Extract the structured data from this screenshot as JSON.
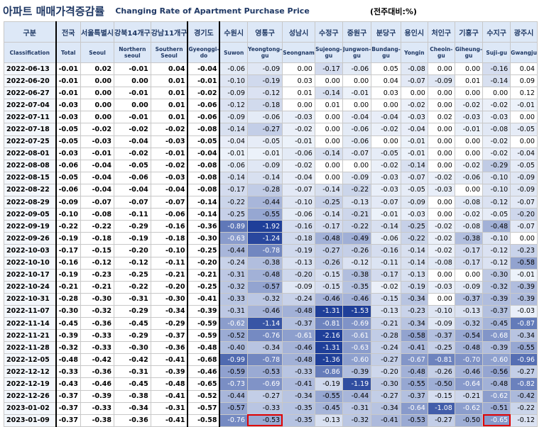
{
  "title": {
    "korean": "아파트 매매가격증감률",
    "english": "Changing Rate of Apartment Purchase Price",
    "unit": "(전주대비:%)"
  },
  "columns": [
    {
      "ko": "구분",
      "en": "Classification"
    },
    {
      "ko": "전국",
      "en": "Total"
    },
    {
      "ko": "서울특별시",
      "en": "Seoul"
    },
    {
      "ko": "강북14개구",
      "en": "Northern seoul"
    },
    {
      "ko": "강남11개구",
      "en": "Southern Seoul"
    },
    {
      "ko": "경기도",
      "en": "Gyeonggi-do"
    },
    {
      "ko": "수원시",
      "en": "Suwon"
    },
    {
      "ko": "영통구",
      "en": "Yeongtong-gu"
    },
    {
      "ko": "성남시",
      "en": "Seongnam"
    },
    {
      "ko": "수정구",
      "en": "Sujeong-gu"
    },
    {
      "ko": "중원구",
      "en": "Jungwon-gu"
    },
    {
      "ko": "분당구",
      "en": "Bundang-gu"
    },
    {
      "ko": "용인시",
      "en": "Yongin"
    },
    {
      "ko": "처인구",
      "en": "Cheoin-gu"
    },
    {
      "ko": "기흥구",
      "en": "Giheung-gu"
    },
    {
      "ko": "수지구",
      "en": "Suji-gu"
    },
    {
      "ko": "광주시",
      "en": "Gwangju"
    }
  ],
  "rows": [
    {
      "date": "2022-06-13",
      "values": [
        "-0.01",
        "0.02",
        "-0.01",
        "0.04",
        "-0.04",
        "-0.06",
        "-0.09",
        "0.00",
        "-0.17",
        "-0.06",
        "0.05",
        "-0.08",
        "0.00",
        "0.00",
        "-0.16",
        "0.04"
      ]
    },
    {
      "date": "2022-06-20",
      "values": [
        "-0.01",
        "0.00",
        "0.00",
        "0.01",
        "-0.01",
        "-0.10",
        "-0.19",
        "0.03",
        "0.00",
        "0.00",
        "0.04",
        "-0.07",
        "-0.09",
        "0.01",
        "-0.14",
        "0.09"
      ]
    },
    {
      "date": "2022-06-27",
      "values": [
        "-0.01",
        "0.00",
        "-0.01",
        "0.01",
        "-0.02",
        "-0.09",
        "-0.12",
        "0.01",
        "-0.14",
        "-0.01",
        "0.03",
        "0.00",
        "0.00",
        "0.00",
        "0.00",
        "0.12"
      ]
    },
    {
      "date": "2022-07-04",
      "values": [
        "-0.03",
        "0.00",
        "0.00",
        "0.01",
        "-0.06",
        "-0.12",
        "-0.18",
        "0.00",
        "0.01",
        "0.00",
        "0.00",
        "-0.02",
        "0.00",
        "-0.02",
        "-0.02",
        "-0.01"
      ]
    },
    {
      "date": "2022-07-11",
      "values": [
        "-0.03",
        "0.00",
        "-0.01",
        "0.01",
        "-0.06",
        "-0.09",
        "-0.06",
        "-0.03",
        "0.00",
        "-0.04",
        "-0.04",
        "-0.03",
        "0.02",
        "-0.03",
        "-0.03",
        "0.00"
      ]
    },
    {
      "date": "2022-07-18",
      "values": [
        "-0.05",
        "-0.02",
        "-0.02",
        "-0.02",
        "-0.08",
        "-0.14",
        "-0.27",
        "-0.02",
        "0.00",
        "-0.06",
        "-0.02",
        "-0.04",
        "0.00",
        "-0.01",
        "-0.08",
        "-0.05"
      ]
    },
    {
      "date": "2022-07-25",
      "values": [
        "-0.05",
        "-0.03",
        "-0.04",
        "-0.03",
        "-0.05",
        "-0.04",
        "-0.05",
        "-0.01",
        "0.00",
        "-0.06",
        "0.00",
        "-0.01",
        "0.00",
        "0.00",
        "-0.02",
        "0.00"
      ]
    },
    {
      "date": "2022-08-01",
      "values": [
        "-0.03",
        "-0.01",
        "-0.02",
        "-0.01",
        "-0.04",
        "-0.01",
        "-0.01",
        "-0.06",
        "-0.14",
        "-0.07",
        "-0.05",
        "-0.01",
        "0.00",
        "0.00",
        "-0.02",
        "-0.04"
      ]
    },
    {
      "date": "2022-08-08",
      "values": [
        "-0.06",
        "-0.04",
        "-0.05",
        "-0.02",
        "-0.08",
        "-0.06",
        "-0.09",
        "-0.02",
        "0.00",
        "0.00",
        "-0.02",
        "-0.14",
        "0.00",
        "-0.02",
        "-0.29",
        "-0.05"
      ]
    },
    {
      "date": "2022-08-15",
      "values": [
        "-0.05",
        "-0.04",
        "-0.06",
        "-0.03",
        "-0.08",
        "-0.14",
        "-0.14",
        "-0.04",
        "0.00",
        "-0.09",
        "-0.03",
        "-0.07",
        "-0.02",
        "-0.06",
        "-0.10",
        "-0.09"
      ]
    },
    {
      "date": "2022-08-22",
      "values": [
        "-0.06",
        "-0.04",
        "-0.04",
        "-0.04",
        "-0.08",
        "-0.17",
        "-0.28",
        "-0.07",
        "-0.14",
        "-0.22",
        "-0.03",
        "-0.05",
        "-0.03",
        "0.00",
        "-0.10",
        "-0.09"
      ]
    },
    {
      "date": "2022-08-29",
      "values": [
        "-0.09",
        "-0.07",
        "-0.07",
        "-0.07",
        "-0.14",
        "-0.22",
        "-0.44",
        "-0.10",
        "-0.25",
        "-0.13",
        "-0.07",
        "-0.09",
        "0.00",
        "-0.08",
        "-0.12",
        "-0.07"
      ]
    },
    {
      "date": "2022-09-05",
      "values": [
        "-0.10",
        "-0.08",
        "-0.11",
        "-0.06",
        "-0.14",
        "-0.25",
        "-0.55",
        "-0.06",
        "-0.14",
        "-0.21",
        "-0.01",
        "-0.03",
        "0.00",
        "-0.02",
        "-0.05",
        "-0.20"
      ]
    },
    {
      "date": "2022-09-19",
      "values": [
        "-0.22",
        "-0.22",
        "-0.29",
        "-0.16",
        "-0.36",
        "-0.89",
        "-1.92",
        "-0.16",
        "-0.17",
        "-0.22",
        "-0.14",
        "-0.25",
        "-0.02",
        "-0.08",
        "-0.48",
        "-0.07"
      ]
    },
    {
      "date": "2022-09-26",
      "values": [
        "-0.19",
        "-0.18",
        "-0.19",
        "-0.18",
        "-0.30",
        "-0.63",
        "-1.24",
        "-0.18",
        "-0.48",
        "-0.49",
        "-0.06",
        "-0.22",
        "-0.02",
        "-0.38",
        "-0.10",
        "0.00"
      ]
    },
    {
      "date": "2022-10-03",
      "values": [
        "-0.17",
        "-0.15",
        "-0.20",
        "-0.10",
        "-0.25",
        "-0.44",
        "-0.78",
        "-0.19",
        "-0.27",
        "-0.26",
        "-0.16",
        "-0.14",
        "-0.02",
        "-0.17",
        "-0.12",
        "-0.23"
      ]
    },
    {
      "date": "2022-10-10",
      "values": [
        "-0.16",
        "-0.12",
        "-0.12",
        "-0.11",
        "-0.20",
        "-0.24",
        "-0.38",
        "-0.13",
        "-0.26",
        "-0.12",
        "-0.11",
        "-0.14",
        "-0.08",
        "-0.17",
        "-0.12",
        "-0.58"
      ]
    },
    {
      "date": "2022-10-17",
      "values": [
        "-0.19",
        "-0.23",
        "-0.25",
        "-0.21",
        "-0.21",
        "-0.31",
        "-0.48",
        "-0.20",
        "-0.15",
        "-0.38",
        "-0.17",
        "-0.13",
        "0.00",
        "0.00",
        "-0.30",
        "-0.01"
      ]
    },
    {
      "date": "2022-10-24",
      "values": [
        "-0.21",
        "-0.21",
        "-0.22",
        "-0.20",
        "-0.25",
        "-0.32",
        "-0.57",
        "-0.09",
        "-0.15",
        "-0.35",
        "-0.02",
        "-0.19",
        "-0.03",
        "-0.09",
        "-0.32",
        "-0.39"
      ]
    },
    {
      "date": "2022-10-31",
      "values": [
        "-0.28",
        "-0.30",
        "-0.31",
        "-0.30",
        "-0.41",
        "-0.33",
        "-0.32",
        "-0.24",
        "-0.46",
        "-0.46",
        "-0.15",
        "-0.34",
        "0.00",
        "-0.37",
        "-0.39",
        "-0.39"
      ]
    },
    {
      "date": "2022-11-07",
      "values": [
        "-0.30",
        "-0.32",
        "-0.29",
        "-0.34",
        "-0.39",
        "-0.31",
        "-0.46",
        "-0.48",
        "-1.31",
        "-1.53",
        "-0.13",
        "-0.23",
        "-0.10",
        "-0.13",
        "-0.37",
        "-0.03"
      ]
    },
    {
      "date": "2022-11-14",
      "values": [
        "-0.45",
        "-0.36",
        "-0.45",
        "-0.29",
        "-0.59",
        "-0.62",
        "-1.14",
        "-0.37",
        "-0.81",
        "-0.69",
        "-0.21",
        "-0.34",
        "-0.09",
        "-0.32",
        "-0.45",
        "-0.87"
      ]
    },
    {
      "date": "2022-11-21",
      "values": [
        "-0.39",
        "-0.33",
        "-0.29",
        "-0.37",
        "-0.59",
        "-0.52",
        "-0.76",
        "-0.61",
        "-2.16",
        "-0.61",
        "-0.28",
        "-0.58",
        "-0.37",
        "-0.54",
        "-0.68",
        "-0.34"
      ]
    },
    {
      "date": "2022-11-28",
      "values": [
        "-0.32",
        "-0.33",
        "-0.30",
        "-0.36",
        "-0.48",
        "-0.40",
        "-0.34",
        "-0.46",
        "-1.31",
        "-0.63",
        "-0.24",
        "-0.41",
        "-0.25",
        "-0.48",
        "-0.39",
        "-0.55"
      ]
    },
    {
      "date": "2022-12-05",
      "values": [
        "-0.48",
        "-0.42",
        "-0.42",
        "-0.41",
        "-0.68",
        "-0.99",
        "-0.78",
        "-0.48",
        "-1.36",
        "-0.60",
        "-0.27",
        "-0.67",
        "-0.81",
        "-0.70",
        "-0.60",
        "-0.96"
      ]
    },
    {
      "date": "2022-12-12",
      "values": [
        "-0.33",
        "-0.36",
        "-0.31",
        "-0.39",
        "-0.46",
        "-0.59",
        "-0.53",
        "-0.33",
        "-0.86",
        "-0.39",
        "-0.20",
        "-0.48",
        "-0.26",
        "-0.46",
        "-0.56",
        "-0.27"
      ]
    },
    {
      "date": "2022-12-19",
      "values": [
        "-0.43",
        "-0.46",
        "-0.45",
        "-0.48",
        "-0.65",
        "-0.73",
        "-0.69",
        "-0.41",
        "-0.19",
        "-1.19",
        "-0.30",
        "-0.55",
        "-0.50",
        "-0.64",
        "-0.48",
        "-0.82"
      ]
    },
    {
      "date": "2022-12-26",
      "values": [
        "-0.37",
        "-0.39",
        "-0.38",
        "-0.41",
        "-0.52",
        "-0.44",
        "-0.27",
        "-0.34",
        "-0.55",
        "-0.44",
        "-0.27",
        "-0.37",
        "-0.15",
        "-0.21",
        "-0.62",
        "-0.42"
      ]
    },
    {
      "date": "2023-01-02",
      "values": [
        "-0.37",
        "-0.33",
        "-0.34",
        "-0.31",
        "-0.57",
        "-0.57",
        "-0.33",
        "-0.35",
        "-0.45",
        "-0.31",
        "-0.34",
        "-0.64",
        "-1.08",
        "-0.62",
        "-0.51",
        "-0.22"
      ]
    },
    {
      "date": "2023-01-09",
      "values": [
        "-0.37",
        "-0.38",
        "-0.36",
        "-0.41",
        "-0.58",
        "-0.76",
        "-0.53",
        "-0.35",
        "-0.13",
        "-0.32",
        "-0.41",
        "-0.53",
        "-0.27",
        "-0.50",
        "-0.65",
        "-0.12"
      ]
    }
  ],
  "bold_columns": [
    0,
    1,
    2,
    3,
    4
  ],
  "highlighted_cells": [
    {
      "date": "2023-01-09",
      "column": "영통구"
    },
    {
      "date": "2023-01-09",
      "column": "수지구"
    }
  ],
  "colors": {
    "header_bg": "#dde8f7",
    "title": "#1f3864",
    "highlight_border": "#e00000",
    "scale_light": "#eef3fb",
    "scale_dark": "#1f3f99"
  }
}
